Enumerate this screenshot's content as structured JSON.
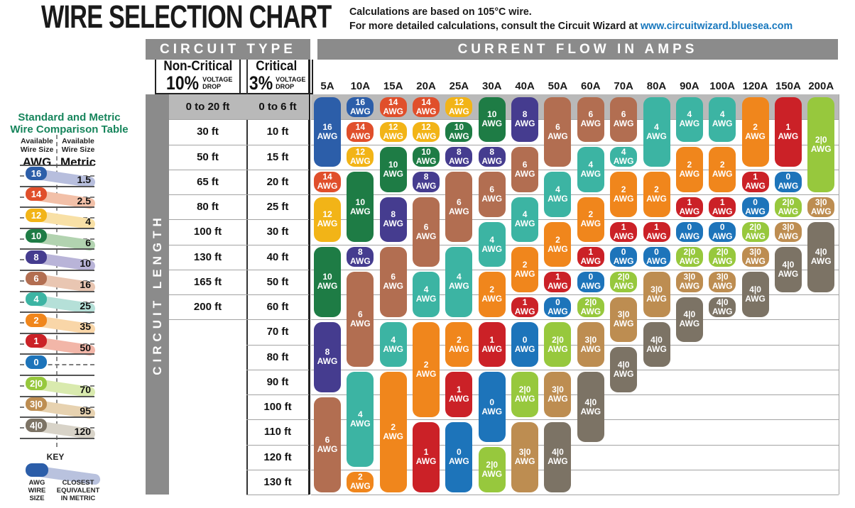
{
  "header": {
    "title": "WIRE SELECTION CHART",
    "note_line1": "Calculations are based on 105°C wire.",
    "note_line2": "For more detailed calculations, consult the Circuit Wizard at",
    "link": "www.circuitwizard.bluesea.com"
  },
  "circuit_type": {
    "label": "CIRCUIT TYPE",
    "non_critical": {
      "name": "Non-Critical",
      "pct": "10%",
      "drop1": "VOLTAGE",
      "drop2": "DROP"
    },
    "critical": {
      "name": "Critical",
      "pct": "3%",
      "drop1": "VOLTAGE",
      "drop2": "DROP"
    }
  },
  "current_flow_label": "CURRENT FLOW IN AMPS",
  "circuit_length_label": "CIRCUIT LENGTH",
  "sidebar": {
    "title_line1": "Standard and Metric",
    "title_line2": "Wire Comparison Table",
    "col_left": {
      "h1": "Available",
      "h2": "Wire Size",
      "unit": "AWG"
    },
    "col_right": {
      "h1": "Available",
      "h2": "Wire Size",
      "unit": "Metric"
    },
    "rows": [
      {
        "awg": "16",
        "metric": "1.5"
      },
      {
        "awg": "14",
        "metric": "2.5"
      },
      {
        "awg": "12",
        "metric": "4"
      },
      {
        "awg": "10",
        "metric": "6"
      },
      {
        "awg": "8",
        "metric": "10"
      },
      {
        "awg": "6",
        "metric": "16"
      },
      {
        "awg": "4",
        "metric": "25"
      },
      {
        "awg": "2",
        "metric": "35"
      },
      {
        "awg": "1",
        "metric": "50"
      },
      {
        "awg": "0",
        "metric": ""
      },
      {
        "awg": "2|0",
        "metric": "70"
      },
      {
        "awg": "3|0",
        "metric": "95"
      },
      {
        "awg": "4|0",
        "metric": "120"
      }
    ],
    "key": {
      "label": "KEY",
      "left": "AWG WIRE SIZE",
      "right": "CLOSEST EQUIVALENT IN METRIC"
    }
  },
  "chart_data": {
    "type": "table",
    "awg_suffix": "AWG",
    "amps": [
      "5A",
      "10A",
      "15A",
      "20A",
      "25A",
      "30A",
      "40A",
      "50A",
      "60A",
      "70A",
      "80A",
      "90A",
      "100A",
      "120A",
      "150A",
      "200A"
    ],
    "row_labels": [
      {
        "non_critical": "0 to 20 ft",
        "critical": "0 to 6 ft"
      },
      {
        "non_critical": "30 ft",
        "critical": "10 ft"
      },
      {
        "non_critical": "50 ft",
        "critical": "15 ft"
      },
      {
        "non_critical": "65 ft",
        "critical": "20 ft"
      },
      {
        "non_critical": "80 ft",
        "critical": "25 ft"
      },
      {
        "non_critical": "100 ft",
        "critical": "30 ft"
      },
      {
        "non_critical": "130 ft",
        "critical": "40 ft"
      },
      {
        "non_critical": "165 ft",
        "critical": "50 ft"
      },
      {
        "non_critical": "200 ft",
        "critical": "60 ft"
      },
      {
        "non_critical": "",
        "critical": "70 ft"
      },
      {
        "non_critical": "",
        "critical": "80 ft"
      },
      {
        "non_critical": "",
        "critical": "90 ft"
      },
      {
        "non_critical": "",
        "critical": "100 ft"
      },
      {
        "non_critical": "",
        "critical": "110 ft"
      },
      {
        "non_critical": "",
        "critical": "120 ft"
      },
      {
        "non_critical": "",
        "critical": "130 ft"
      }
    ],
    "columns": [
      {
        "amp": "5A",
        "pills": [
          {
            "awg": "16",
            "rows": [
              1,
              3
            ]
          },
          {
            "awg": "14",
            "rows": [
              4,
              4
            ]
          },
          {
            "awg": "12",
            "rows": [
              5,
              6
            ]
          },
          {
            "awg": "10",
            "rows": [
              7,
              9
            ]
          },
          {
            "awg": "8",
            "rows": [
              10,
              12
            ]
          },
          {
            "awg": "6",
            "rows": [
              13,
              16
            ]
          }
        ]
      },
      {
        "amp": "10A",
        "pills": [
          {
            "awg": "16",
            "rows": [
              1,
              1
            ]
          },
          {
            "awg": "14",
            "rows": [
              2,
              2
            ]
          },
          {
            "awg": "12",
            "rows": [
              3,
              3
            ]
          },
          {
            "awg": "10",
            "rows": [
              4,
              6
            ]
          },
          {
            "awg": "8",
            "rows": [
              7,
              7
            ]
          },
          {
            "awg": "6",
            "rows": [
              8,
              11
            ]
          },
          {
            "awg": "4",
            "rows": [
              12,
              15
            ]
          },
          {
            "awg": "2",
            "rows": [
              16,
              16
            ]
          }
        ]
      },
      {
        "amp": "15A",
        "pills": [
          {
            "awg": "14",
            "rows": [
              1,
              1
            ]
          },
          {
            "awg": "12",
            "rows": [
              2,
              2
            ]
          },
          {
            "awg": "10",
            "rows": [
              3,
              4
            ]
          },
          {
            "awg": "8",
            "rows": [
              5,
              6
            ]
          },
          {
            "awg": "6",
            "rows": [
              7,
              9
            ]
          },
          {
            "awg": "4",
            "rows": [
              10,
              11
            ]
          },
          {
            "awg": "2",
            "rows": [
              12,
              16
            ]
          }
        ]
      },
      {
        "amp": "20A",
        "pills": [
          {
            "awg": "14",
            "rows": [
              1,
              1
            ]
          },
          {
            "awg": "12",
            "rows": [
              2,
              2
            ]
          },
          {
            "awg": "10",
            "rows": [
              3,
              3
            ]
          },
          {
            "awg": "8",
            "rows": [
              4,
              4
            ]
          },
          {
            "awg": "6",
            "rows": [
              5,
              7
            ]
          },
          {
            "awg": "4",
            "rows": [
              8,
              9
            ]
          },
          {
            "awg": "2",
            "rows": [
              10,
              13
            ]
          },
          {
            "awg": "1",
            "rows": [
              14,
              16
            ]
          }
        ]
      },
      {
        "amp": "25A",
        "pills": [
          {
            "awg": "12",
            "rows": [
              1,
              1
            ]
          },
          {
            "awg": "10",
            "rows": [
              2,
              2
            ]
          },
          {
            "awg": "8",
            "rows": [
              3,
              3
            ]
          },
          {
            "awg": "6",
            "rows": [
              4,
              6
            ]
          },
          {
            "awg": "4",
            "rows": [
              7,
              9
            ]
          },
          {
            "awg": "2",
            "rows": [
              10,
              11
            ]
          },
          {
            "awg": "1",
            "rows": [
              12,
              13
            ]
          },
          {
            "awg": "0",
            "rows": [
              14,
              16
            ]
          }
        ]
      },
      {
        "amp": "30A",
        "pills": [
          {
            "awg": "10",
            "rows": [
              1,
              2
            ]
          },
          {
            "awg": "8",
            "rows": [
              3,
              3
            ]
          },
          {
            "awg": "6",
            "rows": [
              4,
              5
            ]
          },
          {
            "awg": "4",
            "rows": [
              6,
              7
            ]
          },
          {
            "awg": "2",
            "rows": [
              8,
              9
            ]
          },
          {
            "awg": "1",
            "rows": [
              10,
              11
            ]
          },
          {
            "awg": "0",
            "rows": [
              12,
              14
            ]
          },
          {
            "awg": "2|0",
            "rows": [
              15,
              16
            ]
          }
        ]
      },
      {
        "amp": "40A",
        "pills": [
          {
            "awg": "8",
            "rows": [
              1,
              2
            ]
          },
          {
            "awg": "6",
            "rows": [
              3,
              4
            ]
          },
          {
            "awg": "4",
            "rows": [
              5,
              6
            ]
          },
          {
            "awg": "2",
            "rows": [
              7,
              8
            ]
          },
          {
            "awg": "1",
            "rows": [
              9,
              9
            ]
          },
          {
            "awg": "0",
            "rows": [
              10,
              11
            ]
          },
          {
            "awg": "2|0",
            "rows": [
              12,
              13
            ]
          },
          {
            "awg": "3|0",
            "rows": [
              14,
              16
            ]
          }
        ]
      },
      {
        "amp": "50A",
        "pills": [
          {
            "awg": "6",
            "rows": [
              1,
              3
            ]
          },
          {
            "awg": "4",
            "rows": [
              4,
              5
            ]
          },
          {
            "awg": "2",
            "rows": [
              6,
              7
            ]
          },
          {
            "awg": "1",
            "rows": [
              8,
              8
            ]
          },
          {
            "awg": "0",
            "rows": [
              9,
              9
            ]
          },
          {
            "awg": "2|0",
            "rows": [
              10,
              11
            ]
          },
          {
            "awg": "3|0",
            "rows": [
              12,
              13
            ]
          },
          {
            "awg": "4|0",
            "rows": [
              14,
              16
            ]
          }
        ]
      },
      {
        "amp": "60A",
        "pills": [
          {
            "awg": "6",
            "rows": [
              1,
              2
            ]
          },
          {
            "awg": "4",
            "rows": [
              3,
              4
            ]
          },
          {
            "awg": "2",
            "rows": [
              5,
              6
            ]
          },
          {
            "awg": "1",
            "rows": [
              7,
              7
            ]
          },
          {
            "awg": "0",
            "rows": [
              8,
              8
            ]
          },
          {
            "awg": "2|0",
            "rows": [
              9,
              9
            ]
          },
          {
            "awg": "3|0",
            "rows": [
              10,
              11
            ]
          },
          {
            "awg": "4|0",
            "rows": [
              12,
              14
            ]
          }
        ]
      },
      {
        "amp": "70A",
        "pills": [
          {
            "awg": "6",
            "rows": [
              1,
              2
            ]
          },
          {
            "awg": "4",
            "rows": [
              3,
              3
            ]
          },
          {
            "awg": "2",
            "rows": [
              4,
              5
            ]
          },
          {
            "awg": "1",
            "rows": [
              6,
              6
            ]
          },
          {
            "awg": "0",
            "rows": [
              7,
              7
            ]
          },
          {
            "awg": "2|0",
            "rows": [
              8,
              8
            ]
          },
          {
            "awg": "3|0",
            "rows": [
              9,
              10
            ]
          },
          {
            "awg": "4|0",
            "rows": [
              11,
              12
            ]
          }
        ]
      },
      {
        "amp": "80A",
        "pills": [
          {
            "awg": "4",
            "rows": [
              1,
              3
            ]
          },
          {
            "awg": "2",
            "rows": [
              4,
              5
            ]
          },
          {
            "awg": "1",
            "rows": [
              6,
              6
            ]
          },
          {
            "awg": "0",
            "rows": [
              7,
              7
            ]
          },
          {
            "awg": "3|0",
            "rows": [
              8,
              9
            ]
          },
          {
            "awg": "4|0",
            "rows": [
              10,
              11
            ]
          }
        ]
      },
      {
        "amp": "90A",
        "pills": [
          {
            "awg": "4",
            "rows": [
              1,
              2
            ]
          },
          {
            "awg": "2",
            "rows": [
              3,
              4
            ]
          },
          {
            "awg": "1",
            "rows": [
              5,
              5
            ]
          },
          {
            "awg": "0",
            "rows": [
              6,
              6
            ]
          },
          {
            "awg": "2|0",
            "rows": [
              7,
              7
            ]
          },
          {
            "awg": "3|0",
            "rows": [
              8,
              8
            ]
          },
          {
            "awg": "4|0",
            "rows": [
              9,
              10
            ]
          }
        ]
      },
      {
        "amp": "100A",
        "pills": [
          {
            "awg": "4",
            "rows": [
              1,
              2
            ]
          },
          {
            "awg": "2",
            "rows": [
              3,
              4
            ]
          },
          {
            "awg": "1",
            "rows": [
              5,
              5
            ]
          },
          {
            "awg": "0",
            "rows": [
              6,
              6
            ]
          },
          {
            "awg": "2|0",
            "rows": [
              7,
              7
            ]
          },
          {
            "awg": "3|0",
            "rows": [
              8,
              8
            ]
          },
          {
            "awg": "4|0",
            "rows": [
              9,
              9
            ]
          }
        ]
      },
      {
        "amp": "120A",
        "pills": [
          {
            "awg": "2",
            "rows": [
              1,
              3
            ]
          },
          {
            "awg": "1",
            "rows": [
              4,
              4
            ]
          },
          {
            "awg": "0",
            "rows": [
              5,
              5
            ]
          },
          {
            "awg": "2|0",
            "rows": [
              6,
              6
            ]
          },
          {
            "awg": "3|0",
            "rows": [
              7,
              7
            ]
          },
          {
            "awg": "4|0",
            "rows": [
              8,
              9
            ]
          }
        ]
      },
      {
        "amp": "150A",
        "pills": [
          {
            "awg": "1",
            "rows": [
              1,
              3
            ]
          },
          {
            "awg": "0",
            "rows": [
              4,
              4
            ]
          },
          {
            "awg": "2|0",
            "rows": [
              5,
              5
            ]
          },
          {
            "awg": "3|0",
            "rows": [
              6,
              6
            ]
          },
          {
            "awg": "4|0",
            "rows": [
              7,
              8
            ]
          }
        ]
      },
      {
        "amp": "200A",
        "pills": [
          {
            "awg": "2|0",
            "rows": [
              1,
              4
            ]
          },
          {
            "awg": "3|0",
            "rows": [
              5,
              5
            ]
          },
          {
            "awg": "4|0",
            "rows": [
              6,
              8
            ]
          }
        ]
      }
    ],
    "wire_colors": {
      "16": "#2c5ea9",
      "14": "#e04f2b",
      "12": "#f2b417",
      "10": "#1e7c45",
      "8": "#453c8f",
      "6": "#b26e51",
      "4": "#3cb4a3",
      "2": "#f0861c",
      "1": "#cb2127",
      "0": "#1d74ba",
      "2|0": "#97c83d",
      "3|0": "#bd8d51",
      "4|0": "#7c7365"
    },
    "wire_tints": {
      "16": "#b7bedd",
      "14": "#f2c0a8",
      "12": "#f8e0a6",
      "10": "#b2d3b0",
      "8": "#b9b4d8",
      "6": "#e9c6b2",
      "4": "#b5e0d8",
      "2": "#f9d6a8",
      "1": "#f2b6a8",
      "0": "",
      "2|0": "#d9eaae",
      "3|0": "#e7d2b0",
      "4|0": "#d8d3c8"
    }
  },
  "colors": {
    "header_bar": "#8b8b8b",
    "band": "#b9b9b9",
    "grid_line": "#a3a3a3",
    "link_blue": "#1878be",
    "legend_title_green": "#17855c",
    "key_trail": "#b9c2de"
  }
}
